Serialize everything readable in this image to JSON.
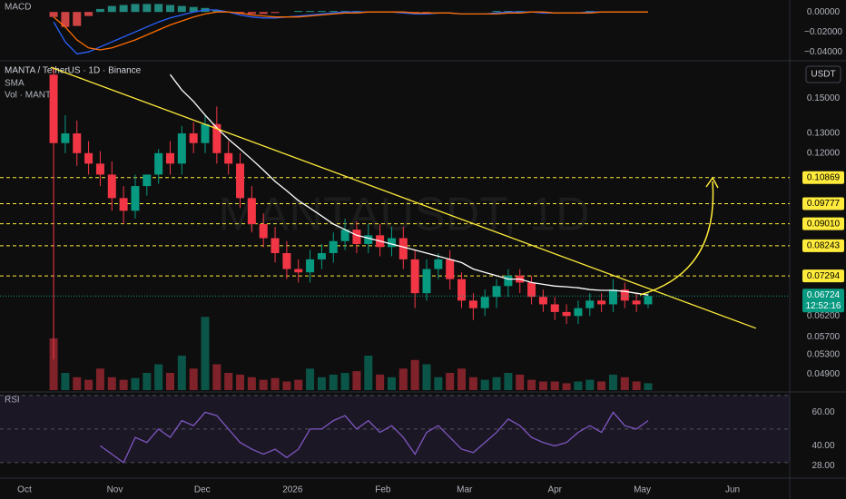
{
  "chart_data": {
    "type": "candlestick",
    "title": "MANTA / TetherUS · 1D · Binance",
    "indicator_sma": "SMA",
    "indicator_volume": "Vol · MANTA",
    "indicator_macd": "MACD",
    "indicator_rsi": "RSI",
    "currency": "USDT",
    "watermark": "MANTAUSDT, 1D",
    "countdown": "12:52:16",
    "log_scale": true,
    "up_color": "#089981",
    "down_color": "#f23645",
    "sma_color": "#ffffff",
    "trend_color": "#ffeb3b",
    "x": [
      10,
      14,
      18,
      22,
      26,
      30,
      34,
      38,
      42,
      46,
      50,
      54,
      58,
      62,
      66,
      70,
      74,
      78,
      82,
      86,
      90,
      94,
      98,
      102,
      106,
      110,
      114,
      118,
      122,
      126,
      130,
      134,
      138,
      142,
      146,
      150,
      154,
      158,
      162,
      166,
      170,
      174,
      178,
      182,
      186,
      190,
      194,
      198,
      202,
      206,
      210,
      214
    ],
    "open": [
      0.165,
      0.125,
      0.13,
      0.12,
      0.115,
      0.11,
      0.1,
      0.095,
      0.105,
      0.11,
      0.12,
      0.115,
      0.13,
      0.125,
      0.135,
      0.12,
      0.115,
      0.1,
      0.09,
      0.085,
      0.08,
      0.075,
      0.074,
      0.078,
      0.08,
      0.084,
      0.088,
      0.083,
      0.086,
      0.082,
      0.085,
      0.078,
      0.068,
      0.075,
      0.078,
      0.072,
      0.066,
      0.064,
      0.067,
      0.07,
      0.073,
      0.071,
      0.067,
      0.065,
      0.063,
      0.062,
      0.064,
      0.066,
      0.065,
      0.069,
      0.066,
      0.065
    ],
    "high": [
      0.17,
      0.14,
      0.137,
      0.126,
      0.121,
      0.116,
      0.105,
      0.11,
      0.11,
      0.122,
      0.126,
      0.134,
      0.136,
      0.14,
      0.145,
      0.126,
      0.12,
      0.105,
      0.094,
      0.089,
      0.084,
      0.078,
      0.081,
      0.083,
      0.087,
      0.092,
      0.091,
      0.09,
      0.09,
      0.089,
      0.089,
      0.081,
      0.078,
      0.08,
      0.081,
      0.074,
      0.068,
      0.069,
      0.072,
      0.075,
      0.075,
      0.073,
      0.069,
      0.067,
      0.065,
      0.066,
      0.068,
      0.068,
      0.072,
      0.071,
      0.068,
      0.0685
    ],
    "low": [
      0.052,
      0.12,
      0.114,
      0.11,
      0.105,
      0.095,
      0.09,
      0.092,
      0.101,
      0.106,
      0.11,
      0.11,
      0.12,
      0.12,
      0.115,
      0.11,
      0.096,
      0.087,
      0.082,
      0.077,
      0.072,
      0.071,
      0.071,
      0.075,
      0.077,
      0.081,
      0.08,
      0.08,
      0.079,
      0.079,
      0.075,
      0.064,
      0.066,
      0.072,
      0.069,
      0.064,
      0.061,
      0.062,
      0.064,
      0.067,
      0.068,
      0.065,
      0.063,
      0.061,
      0.06,
      0.06,
      0.062,
      0.063,
      0.063,
      0.064,
      0.063,
      0.064
    ],
    "close": [
      0.125,
      0.13,
      0.12,
      0.115,
      0.11,
      0.1,
      0.095,
      0.105,
      0.11,
      0.12,
      0.115,
      0.13,
      0.125,
      0.135,
      0.12,
      0.115,
      0.1,
      0.09,
      0.085,
      0.08,
      0.075,
      0.074,
      0.078,
      0.08,
      0.084,
      0.088,
      0.083,
      0.086,
      0.082,
      0.085,
      0.078,
      0.068,
      0.075,
      0.078,
      0.072,
      0.066,
      0.064,
      0.067,
      0.07,
      0.073,
      0.071,
      0.067,
      0.065,
      0.063,
      0.062,
      0.064,
      0.066,
      0.065,
      0.069,
      0.066,
      0.065,
      0.06724
    ],
    "sma": [
      null,
      null,
      null,
      null,
      null,
      null,
      null,
      null,
      null,
      null,
      0.165,
      0.155,
      0.148,
      0.14,
      0.133,
      0.127,
      0.122,
      0.117,
      0.112,
      0.107,
      0.103,
      0.099,
      0.096,
      0.093,
      0.09,
      0.088,
      0.086,
      0.085,
      0.084,
      0.083,
      0.082,
      0.081,
      0.08,
      0.079,
      0.078,
      0.077,
      0.075,
      0.074,
      0.073,
      0.072,
      0.072,
      0.071,
      0.0705,
      0.07,
      0.0698,
      0.0695,
      0.069,
      0.0688,
      0.0688,
      0.0685,
      0.068,
      0.0675
    ],
    "volume": [
      60,
      20,
      15,
      12,
      25,
      15,
      12,
      14,
      20,
      30,
      20,
      40,
      25,
      85,
      30,
      20,
      18,
      15,
      12,
      14,
      10,
      12,
      25,
      15,
      18,
      20,
      22,
      40,
      18,
      15,
      25,
      35,
      30,
      15,
      20,
      25,
      15,
      12,
      15,
      20,
      18,
      12,
      10,
      10,
      8,
      10,
      12,
      10,
      18,
      15,
      10,
      8
    ],
    "volume_ylim": [
      0,
      100
    ],
    "trendline": {
      "x": [
        9,
        251
      ],
      "values": [
        0.17,
        0.059
      ]
    },
    "last_price": 0.06724,
    "levels": [
      0.10869,
      0.09777,
      {
        "value": 0.0901,
        "label": "0.09010"
      },
      0.08243,
      0.07294
    ],
    "ylim": [
      0.0459,
      0.1726
    ],
    "yticks": [
      {
        "value": 0.15,
        "label": "0.15000"
      },
      {
        "value": 0.13,
        "label": "0.13000"
      },
      {
        "value": 0.12,
        "label": "0.12000"
      },
      {
        "value": 0.062,
        "label": "0.06200"
      },
      {
        "value": 0.057,
        "label": "0.05700"
      },
      {
        "value": 0.053,
        "label": "0.05300"
      },
      {
        "value": 0.049,
        "label": "0.04900"
      }
    ],
    "xlim": [
      -8.4,
      262.6
    ],
    "xticks": [
      {
        "value": 0,
        "label": "Oct"
      },
      {
        "value": 31,
        "label": "Nov"
      },
      {
        "value": 61,
        "label": "Dec"
      },
      {
        "value": 92,
        "label": "2026"
      },
      {
        "value": 123,
        "label": "Feb"
      },
      {
        "value": 151,
        "label": "Mar"
      },
      {
        "value": 182,
        "label": "Apr"
      },
      {
        "value": 212,
        "label": "May"
      },
      {
        "value": 243,
        "label": "Jun"
      }
    ],
    "macd": [
      -0.01,
      -0.03,
      -0.042,
      -0.04,
      -0.035,
      -0.03,
      -0.025,
      -0.02,
      -0.015,
      -0.01,
      -0.006,
      -0.003,
      0.0,
      0.002,
      0.002,
      0.0,
      -0.003,
      -0.005,
      -0.006,
      -0.006,
      -0.005,
      -0.004,
      -0.003,
      -0.002,
      -0.001,
      0.0,
      0.0,
      0.0,
      0.0,
      0.0,
      -0.001,
      -0.002,
      -0.002,
      -0.001,
      -0.001,
      -0.002,
      -0.002,
      -0.002,
      -0.001,
      0.0,
      0.0,
      0.0,
      -0.001,
      -0.001,
      -0.001,
      -0.001,
      0.0,
      0.0,
      0.0,
      0.0,
      0.0,
      0.0
    ],
    "signal": [
      -0.005,
      -0.015,
      -0.028,
      -0.036,
      -0.038,
      -0.036,
      -0.032,
      -0.028,
      -0.023,
      -0.018,
      -0.013,
      -0.009,
      -0.005,
      -0.002,
      0.0,
      0.0,
      -0.001,
      -0.003,
      -0.004,
      -0.005,
      -0.005,
      -0.005,
      -0.004,
      -0.003,
      -0.002,
      -0.001,
      -0.001,
      0.0,
      0.0,
      0.0,
      0.0,
      -0.001,
      -0.001,
      -0.001,
      -0.001,
      -0.002,
      -0.002,
      -0.002,
      -0.002,
      -0.001,
      -0.001,
      0.0,
      0.0,
      -0.001,
      -0.001,
      -0.001,
      -0.001,
      0.0,
      0.0,
      0.0,
      0.0,
      0.0
    ],
    "histogram": [
      -0.005,
      -0.015,
      -0.014,
      -0.004,
      0.003,
      0.006,
      0.007,
      0.008,
      0.008,
      0.008,
      0.007,
      0.006,
      0.005,
      0.004,
      0.002,
      0.0,
      -0.002,
      -0.002,
      -0.002,
      -0.001,
      0.0,
      0.001,
      0.001,
      0.001,
      0.001,
      0.001,
      0.001,
      0.0,
      0.0,
      0.0,
      -0.001,
      -0.001,
      -0.001,
      0.0,
      0.0,
      0.0,
      0.0,
      0.0,
      0.001,
      0.001,
      0.001,
      0.0,
      -0.001,
      0.0,
      0.0,
      0.0,
      0.001,
      0.0,
      0.0,
      0.0,
      0.0,
      0.0
    ],
    "macd_ylim": [
      -0.048,
      0.012
    ],
    "macd_yticks": [
      {
        "value": 0,
        "label": "0.00000"
      },
      {
        "value": -0.02,
        "label": "−0.02000"
      },
      {
        "value": -0.04,
        "label": "−0.04000"
      }
    ],
    "rsi": [
      null,
      null,
      null,
      null,
      40,
      35,
      30,
      45,
      42,
      50,
      45,
      55,
      52,
      60,
      58,
      50,
      42,
      38,
      35,
      38,
      33,
      38,
      50,
      50,
      55,
      58,
      50,
      55,
      48,
      52,
      45,
      35,
      48,
      52,
      45,
      38,
      36,
      42,
      48,
      56,
      52,
      45,
      42,
      40,
      42,
      48,
      52,
      48,
      60,
      52,
      50,
      55
    ],
    "rsi_ylim": [
      21.3,
      71
    ],
    "rsi_yticks": [
      {
        "value": 60,
        "label": "60.00"
      },
      {
        "value": 40,
        "label": "40.00"
      },
      {
        "value": 28,
        "label": "28.00"
      }
    ],
    "rsi_bands": [
      70,
      50,
      30
    ]
  }
}
